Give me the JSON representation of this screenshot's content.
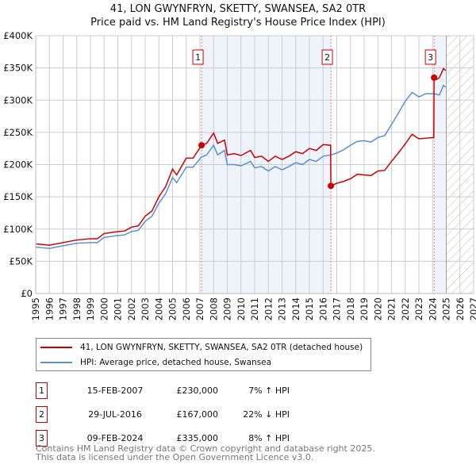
{
  "chart_data": {
    "type": "line",
    "title": "41, LON GWYNFRYN, SKETTY, SWANSEA, SA2 0TR",
    "subtitle": "Price paid vs. HM Land Registry's House Price Index (HPI)",
    "xlim": [
      1995,
      2027
    ],
    "ylim": [
      0,
      400000
    ],
    "y_ticks": [
      {
        "v": 0,
        "label": "£0"
      },
      {
        "v": 50000,
        "label": "£50K"
      },
      {
        "v": 100000,
        "label": "£100K"
      },
      {
        "v": 150000,
        "label": "£150K"
      },
      {
        "v": 200000,
        "label": "£200K"
      },
      {
        "v": 250000,
        "label": "£250K"
      },
      {
        "v": 300000,
        "label": "£300K"
      },
      {
        "v": 350000,
        "label": "£350K"
      },
      {
        "v": 400000,
        "label": "£400K"
      }
    ],
    "x_ticks": [
      "1995",
      "1996",
      "1997",
      "1998",
      "1999",
      "2000",
      "2001",
      "2002",
      "2003",
      "2004",
      "2005",
      "2006",
      "2007",
      "2008",
      "2009",
      "2010",
      "2011",
      "2012",
      "2013",
      "2014",
      "2015",
      "2016",
      "2017",
      "2018",
      "2019",
      "2020",
      "2021",
      "2022",
      "2023",
      "2024",
      "2025",
      "2026",
      "2027"
    ],
    "grid": true,
    "forecast_hatch_from": 2025.0,
    "shaded_ranges": [
      [
        2007.12,
        2016.57
      ],
      [
        2024.11,
        2024.95
      ]
    ],
    "series": [
      {
        "name": "41, LON GWYNFRYN, SKETTY, SWANSEA, SA2 0TR (detached house)",
        "color": "#cc0000",
        "x": [
          1995,
          1995.5,
          1996,
          1997,
          1998,
          1999,
          1999.5,
          2000,
          2001,
          2001.5,
          2002,
          2002.5,
          2003,
          2003.5,
          2004,
          2004.5,
          2005,
          2005.3,
          2005.6,
          2006,
          2006.5,
          2007.12,
          2007.5,
          2008,
          2008.3,
          2008.8,
          2009,
          2009.5,
          2010,
          2010.7,
          2011,
          2011.5,
          2012,
          2012.5,
          2013,
          2013.5,
          2014,
          2014.5,
          2015,
          2015.5,
          2016,
          2016.55,
          2016.57,
          2017,
          2017.5,
          2018,
          2018.5,
          2019,
          2019.5,
          2020,
          2020.5,
          2021,
          2021.5,
          2022,
          2022.5,
          2023,
          2023.5,
          2024.09,
          2024.11,
          2024.3,
          2024.5,
          2024.8,
          2024.95
        ],
        "y": [
          77,
          76,
          75,
          79,
          83,
          85,
          85,
          93,
          96,
          97,
          103,
          105,
          120,
          128,
          150,
          166,
          193,
          184,
          195,
          210,
          210,
          230,
          233,
          249,
          233,
          238,
          215,
          217,
          214,
          222,
          211,
          213,
          205,
          213,
          208,
          213,
          220,
          217,
          225,
          222,
          231,
          230,
          167,
          171,
          174,
          178,
          185,
          184,
          183,
          190,
          191,
          205,
          218,
          232,
          247,
          240,
          241,
          242,
          335,
          332,
          335,
          349,
          346
        ]
      },
      {
        "name": "HPI: Average price, detached house, Swansea",
        "color": "#5b8fd4",
        "x": [
          1995,
          1995.5,
          1996,
          1997,
          1998,
          1999,
          1999.5,
          2000,
          2001,
          2001.5,
          2002,
          2002.5,
          2003,
          2003.5,
          2004,
          2004.5,
          2005,
          2005.3,
          2005.6,
          2006,
          2006.5,
          2007.12,
          2007.5,
          2008,
          2008.3,
          2008.8,
          2009,
          2009.5,
          2010,
          2010.7,
          2011,
          2011.5,
          2012,
          2012.5,
          2013,
          2013.5,
          2014,
          2014.5,
          2015,
          2015.5,
          2016,
          2016.57,
          2017,
          2017.5,
          2018,
          2018.5,
          2019,
          2019.5,
          2020,
          2020.5,
          2021,
          2021.5,
          2022,
          2022.5,
          2023,
          2023.5,
          2024.11,
          2024.5,
          2024.8,
          2024.95
        ],
        "y": [
          72,
          71,
          70,
          74,
          78,
          79,
          79,
          87,
          90,
          91,
          96,
          98,
          112,
          120,
          140,
          155,
          180,
          172,
          182,
          196,
          196,
          212,
          215,
          230,
          215,
          222,
          200,
          200,
          198,
          205,
          195,
          197,
          190,
          197,
          192,
          197,
          203,
          200,
          208,
          205,
          213,
          215,
          218,
          223,
          230,
          236,
          237,
          235,
          242,
          245,
          262,
          280,
          298,
          312,
          305,
          310,
          310,
          308,
          323,
          320
        ]
      }
    ],
    "y_units": 1000,
    "sales": [
      {
        "id": "1",
        "x": 2007.12,
        "price": 230,
        "date": "15-FEB-2007",
        "price_label": "£230,000",
        "hpi": "7% ↑ HPI"
      },
      {
        "id": "2",
        "x": 2016.57,
        "price": 167,
        "date": "29-JUL-2016",
        "price_label": "£167,000",
        "hpi": "22% ↓ HPI"
      },
      {
        "id": "3",
        "x": 2024.11,
        "price": 335,
        "date": "09-FEB-2024",
        "price_label": "£335,000",
        "hpi": "8% ↑ HPI"
      }
    ]
  },
  "footer": {
    "line1": "Contains HM Land Registry data © Crown copyright and database right 2025.",
    "line2": "This data is licensed under the Open Government Licence v3.0."
  }
}
